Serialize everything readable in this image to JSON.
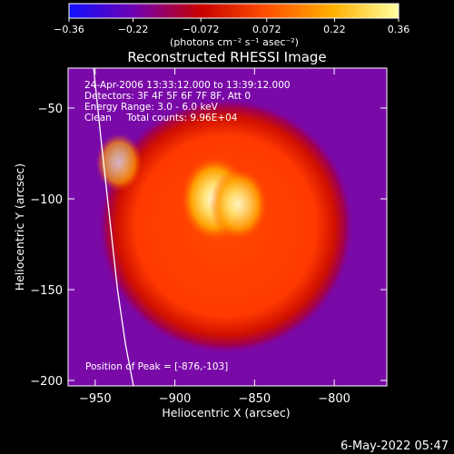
{
  "chart_data": {
    "type": "heatmap",
    "title": "Reconstructed RHESSI Image",
    "xlabel": "Heliocentric X (arcsec)",
    "ylabel": "Heliocentric Y (arcsec)",
    "xlim": [
      -967,
      -767
    ],
    "ylim": [
      -203,
      -28
    ],
    "x_ticks": [
      -950,
      -900,
      -850,
      -800
    ],
    "x_tick_labels": [
      "−950",
      "−900",
      "−850",
      "−800"
    ],
    "y_ticks": [
      -50,
      -100,
      -150,
      -200
    ],
    "y_tick_labels": [
      "−50",
      "−100",
      "−150",
      "−200"
    ],
    "colorbar": {
      "min": -0.36,
      "max": 0.36,
      "ticks": [
        -0.36,
        -0.22,
        -0.072,
        0.072,
        0.22,
        0.36
      ],
      "tick_labels": [
        "−0.36",
        "−0.22",
        "−0.072",
        "0.072",
        "0.22",
        "0.36"
      ],
      "unit_label": "(photons cm⁻² s⁻¹ asec⁻²)",
      "colors": [
        "#1010ff",
        "#7000b0",
        "#c80000",
        "#ff5000",
        "#ffb000",
        "#ffffa0"
      ]
    },
    "annotations": [
      "24-Apr-2006 13:33:12.000 to 13:39:12.000",
      "Detectors: 3F 4F 5F 6F 7F 8F, Att 0",
      "Energy Range: 3.0 - 6.0 keV",
      "Clean     Total counts: 9.96E+04"
    ],
    "peak_label": "Position of Peak = [-876,-103]",
    "peak_position": [
      -876,
      -103
    ],
    "limb_curve": [
      [
        -951,
        -28
      ],
      [
        -946,
        -70
      ],
      [
        -941,
        -110
      ],
      [
        -936,
        -150
      ],
      [
        -931,
        -180
      ],
      [
        -926,
        -203
      ]
    ],
    "sources": [
      {
        "x": -875,
        "y": -100,
        "intensity": 0.36
      },
      {
        "x": -860,
        "y": -103,
        "intensity": 0.27
      },
      {
        "x": -935,
        "y": -80,
        "intensity": 0.17
      }
    ],
    "disk_center": [
      -868,
      -115
    ],
    "disk_radius": 70,
    "background_value": -0.25
  },
  "footer": {
    "date": "6-May-2022 05:47"
  }
}
